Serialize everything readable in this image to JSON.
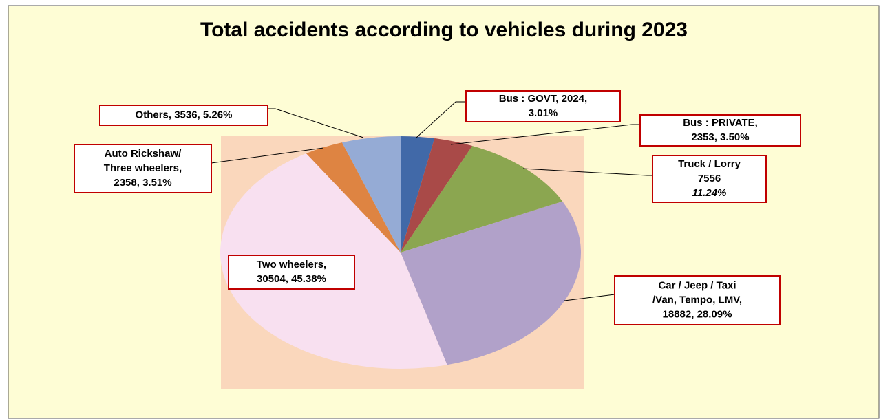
{
  "chart_data": {
    "type": "pie",
    "title": "Total accidents according to vehicles during 2023",
    "values": [
      2024,
      2353,
      7556,
      18882,
      30504,
      2358,
      3536
    ],
    "colors": [
      "#4169a8",
      "#a94a48",
      "#8ba650",
      "#b1a1c9",
      "#f8e0f0",
      "#de8442",
      "#95abd5"
    ],
    "value_labels": [
      [
        "Bus :  GOVT, 2024,",
        "3.01%"
      ],
      [
        "Bus :    PRIVATE,",
        "2353, 3.50%"
      ],
      [
        "Truck / Lorry",
        "7556",
        "11.24%"
      ],
      [
        "Car / Jeep / Taxi",
        "/Van, Tempo, LMV,",
        "18882, 28.09%"
      ],
      [
        "Two wheelers,",
        "30504, 45.38%"
      ],
      [
        "Auto Rickshaw/",
        "Three wheelers,",
        "2358, 3.51%"
      ],
      [
        "Others, 3536, 5.26%"
      ]
    ]
  }
}
